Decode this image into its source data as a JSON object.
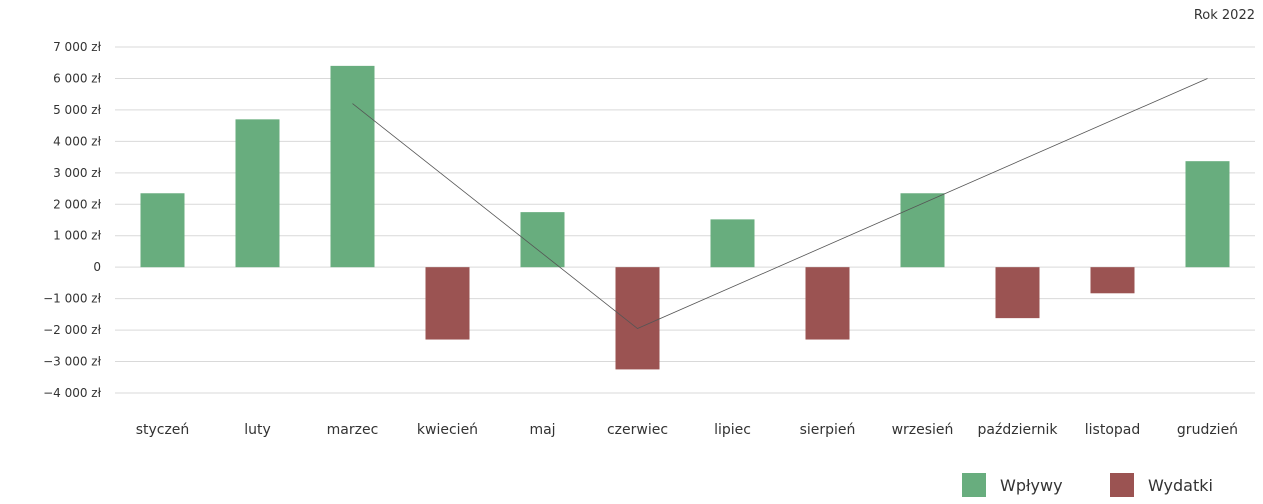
{
  "header": {
    "year_label": "Rok 2022"
  },
  "chart_data": {
    "type": "bar",
    "categories": [
      "styczeń",
      "luty",
      "marzec",
      "kwiecień",
      "maj",
      "czerwiec",
      "lipiec",
      "sierpień",
      "wrzesień",
      "październik",
      "listopad",
      "grudzień"
    ],
    "values": [
      2350,
      4700,
      6400,
      -2300,
      1750,
      -3250,
      1520,
      -2300,
      2350,
      -1620,
      -830,
      3370
    ],
    "yticks": [
      7000,
      6000,
      5000,
      4000,
      3000,
      2000,
      1000,
      0,
      -1000,
      -2000,
      -3000,
      -4000
    ],
    "ytick_labels": [
      "7 000 zł",
      "6 000 zł",
      "5 000 zł",
      "4 000 zł",
      "3 000 zł",
      "2 000 zł",
      "1 000 zł",
      "0",
      "−1 000 zł",
      "−2 000 zł",
      "−3 000 zł",
      "−4 000 zł"
    ],
    "ylim": [
      -4000,
      7000
    ],
    "grid": true,
    "trend_line": {
      "x": [
        "marzec",
        "czerwiec",
        "grudzień"
      ],
      "y": [
        5200,
        -1950,
        6000
      ]
    },
    "colors": {
      "positive": "#68ad7e",
      "negative": "#9b5352",
      "grid": "#d9d9d9",
      "trend": "#555555",
      "text": "#333333"
    },
    "legend": {
      "position": "bottom-right",
      "items": [
        {
          "label": "Wpływy",
          "color": "#68ad7e"
        },
        {
          "label": "Wydatki",
          "color": "#9b5352"
        }
      ]
    }
  }
}
